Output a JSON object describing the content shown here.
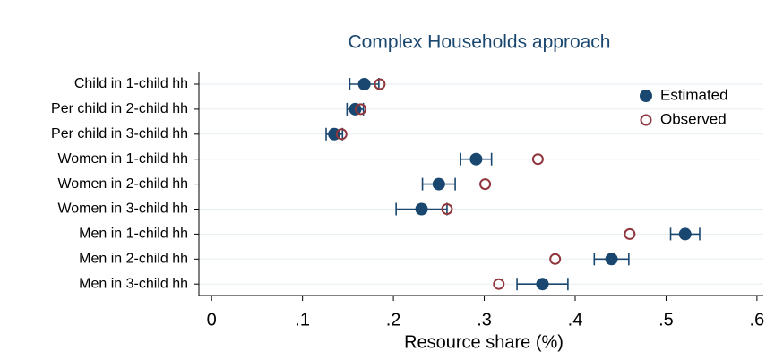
{
  "chart_data": {
    "type": "dot",
    "title": "Complex Households approach",
    "x_label": "Resource share (%)",
    "categories": [
      "Child in 1-child hh",
      "Per child in 2-child hh",
      "Per child in 3-child hh",
      "Women in 1-child hh",
      "Women in 2-child hh",
      "Women in 3-child hh",
      "Men in 1-child hh",
      "Men in 2-child hh",
      "Men in 3-child hh"
    ],
    "series": [
      {
        "name": "Estimated",
        "color": "#1a476f",
        "marker": "filled",
        "values": [
          0.168,
          0.158,
          0.135,
          0.291,
          0.25,
          0.231,
          0.521,
          0.44,
          0.364
        ],
        "errors": [
          0.016,
          0.009,
          0.009,
          0.017,
          0.018,
          0.028,
          0.016,
          0.019,
          0.028
        ]
      },
      {
        "name": "Observed",
        "color": "#90353b",
        "marker": "hollow",
        "values": [
          0.185,
          0.164,
          0.143,
          0.359,
          0.301,
          0.259,
          0.46,
          0.378,
          0.316
        ]
      }
    ],
    "xlim": [
      -0.014,
      0.607
    ],
    "xticks": [
      0,
      {
        "value": 0.1,
        "label": ".1"
      },
      {
        "value": 0.2,
        "label": ".2"
      },
      {
        "value": 0.3,
        "label": ".3"
      },
      {
        "value": 0.4,
        "label": ".4"
      },
      {
        "value": 0.5,
        "label": ".5"
      },
      {
        "value": 0.6,
        "label": ".6"
      }
    ],
    "grid": true,
    "legend": "top-right"
  }
}
